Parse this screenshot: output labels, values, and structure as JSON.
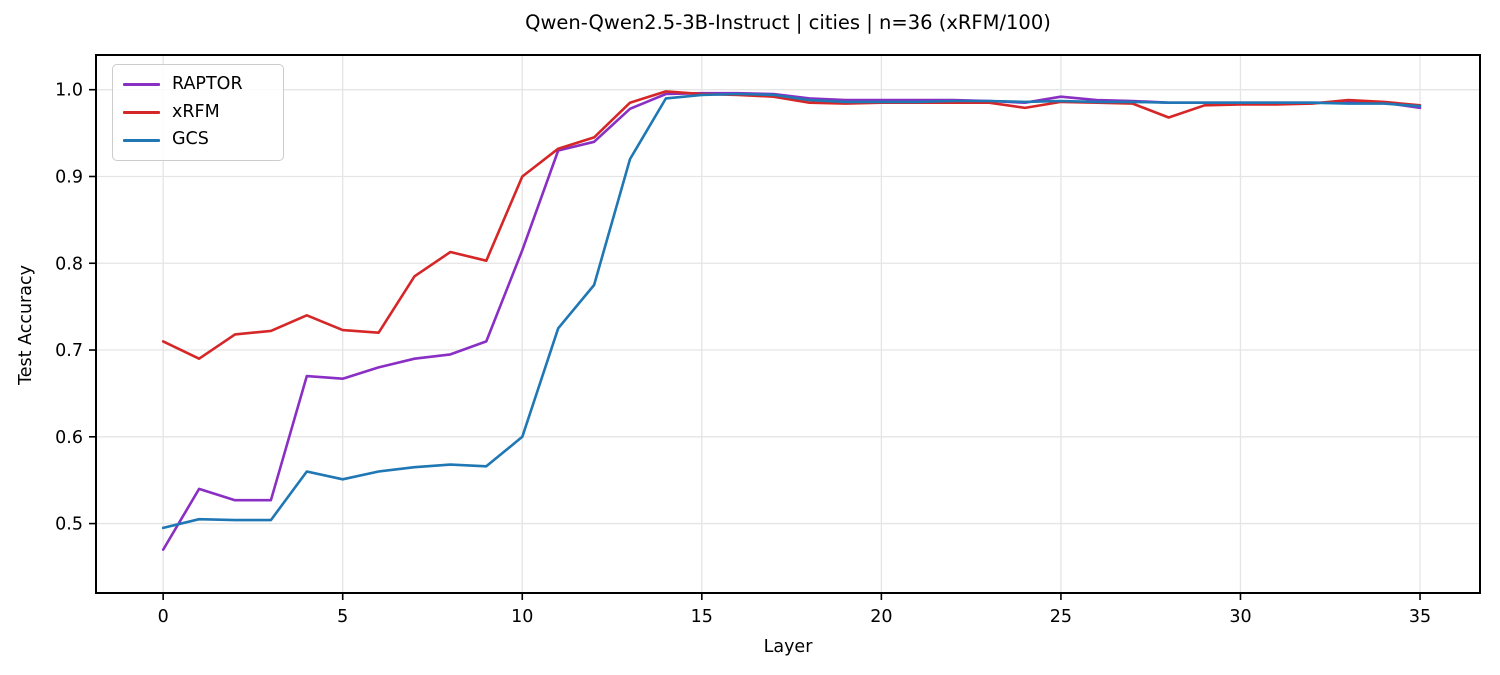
{
  "chart_data": {
    "type": "line",
    "title": "Qwen-Qwen2.5-3B-Instruct | cities | n=36 (xRFM/100)",
    "xlabel": "Layer",
    "ylabel": "Test Accuracy",
    "x": [
      0,
      1,
      2,
      3,
      4,
      5,
      6,
      7,
      8,
      9,
      10,
      11,
      12,
      13,
      14,
      15,
      16,
      17,
      18,
      19,
      20,
      21,
      22,
      23,
      24,
      25,
      26,
      27,
      28,
      29,
      30,
      31,
      32,
      33,
      34,
      35
    ],
    "series": [
      {
        "name": "RAPTOR",
        "color": "#8a2fc4",
        "values": [
          0.47,
          0.54,
          0.527,
          0.527,
          0.67,
          0.667,
          0.68,
          0.69,
          0.695,
          0.71,
          0.815,
          0.93,
          0.94,
          0.978,
          0.995,
          0.996,
          0.996,
          0.995,
          0.99,
          0.988,
          0.988,
          0.988,
          0.988,
          0.987,
          0.985,
          0.992,
          0.988,
          0.987,
          0.985,
          0.985,
          0.985,
          0.985,
          0.985,
          0.985,
          0.985,
          0.979
        ]
      },
      {
        "name": "xRFM",
        "color": "#d62728",
        "values": [
          0.71,
          0.69,
          0.718,
          0.722,
          0.74,
          0.723,
          0.72,
          0.785,
          0.813,
          0.803,
          0.9,
          0.932,
          0.945,
          0.985,
          0.998,
          0.995,
          0.994,
          0.992,
          0.985,
          0.984,
          0.985,
          0.985,
          0.985,
          0.985,
          0.979,
          0.986,
          0.985,
          0.984,
          0.968,
          0.982,
          0.983,
          0.983,
          0.984,
          0.988,
          0.986,
          0.982
        ]
      },
      {
        "name": "GCS",
        "color": "#1f77b4",
        "values": [
          0.495,
          0.505,
          0.504,
          0.504,
          0.56,
          0.551,
          0.56,
          0.565,
          0.568,
          0.566,
          0.6,
          0.725,
          0.775,
          0.92,
          0.99,
          0.994,
          0.995,
          0.994,
          0.988,
          0.986,
          0.986,
          0.986,
          0.987,
          0.987,
          0.986,
          0.987,
          0.986,
          0.986,
          0.985,
          0.985,
          0.985,
          0.985,
          0.985,
          0.984,
          0.984,
          0.981
        ]
      }
    ],
    "xticks": [
      0,
      5,
      10,
      15,
      20,
      25,
      30,
      35
    ],
    "xtick_labels": [
      "0",
      "5",
      "10",
      "15",
      "20",
      "25",
      "30",
      "35"
    ],
    "yticks": [
      0.5,
      0.6,
      0.7,
      0.8,
      0.9,
      1.0
    ],
    "ytick_labels": [
      "0.5",
      "0.6",
      "0.7",
      "0.8",
      "0.9",
      "1.0"
    ],
    "xlim": [
      -1.87,
      36.67
    ],
    "ylim": [
      0.42,
      1.04
    ],
    "grid": true,
    "legend_position": "upper left",
    "colors": {
      "grid": "#e5e5e5",
      "axis": "#000000",
      "background": "#ffffff"
    }
  }
}
